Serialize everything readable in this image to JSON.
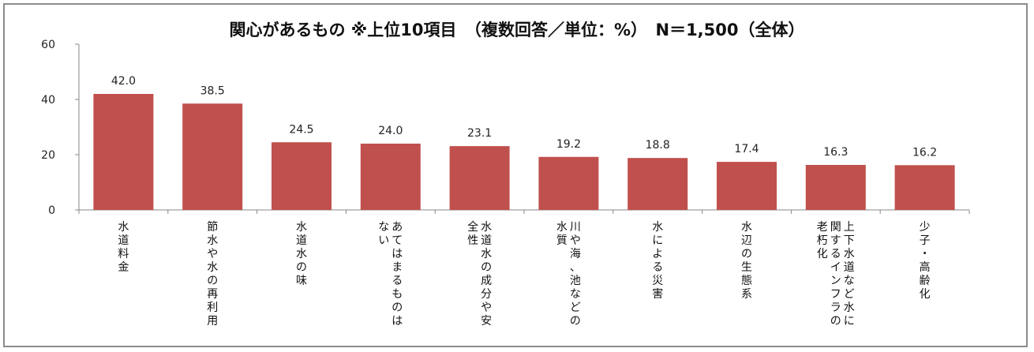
{
  "chart_data": {
    "type": "bar",
    "title": "関心があるもの ※上位10項目　（複数回答／単位：%）　N＝1,500（全体）",
    "categories": [
      "水道料金",
      "節水や水の再利用",
      "水道水の味",
      "あてはまるものはない",
      "水道水の成分や安全性",
      "川や海、池などの水質",
      "水による災害",
      "水辺の生態系",
      "上下水道など水に関するインフラの老朽化",
      "少子・高齢化"
    ],
    "category_lines": [
      [
        "水道料金"
      ],
      [
        "節水や水の再利用"
      ],
      [
        "水道水の味"
      ],
      [
        "あてはまるものは",
        "ない"
      ],
      [
        "水道水の成分や安",
        "全性"
      ],
      [
        "川や海、池などの",
        "水質"
      ],
      [
        "水による災害"
      ],
      [
        "水辺の生態系"
      ],
      [
        "上下水道など水に",
        "関するインフラの",
        "老朽化"
      ],
      [
        "少子・高齢化"
      ]
    ],
    "values": [
      42.0,
      38.5,
      24.5,
      24.0,
      23.1,
      19.2,
      18.8,
      17.4,
      16.3,
      16.2
    ],
    "value_labels": [
      "42.0",
      "38.5",
      "24.5",
      "24.0",
      "23.1",
      "19.2",
      "18.8",
      "17.4",
      "16.3",
      "16.2"
    ],
    "ylim": [
      0,
      60
    ],
    "yticks": [
      0,
      20,
      40,
      60
    ],
    "ytick_labels": [
      "0",
      "20",
      "40",
      "60"
    ],
    "bar_color": "#c0504d",
    "axis_color": "#888888",
    "grid": false,
    "legend": "none"
  }
}
